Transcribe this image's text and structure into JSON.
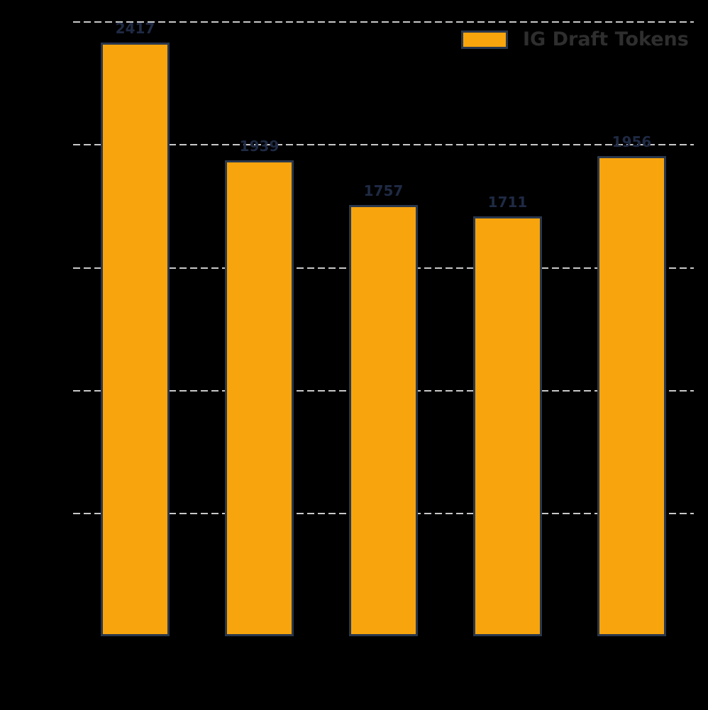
{
  "chart_data": {
    "type": "bar",
    "title": "",
    "xlabel": "",
    "ylabel": "",
    "categories": [
      "",
      "",
      "",
      "",
      ""
    ],
    "series": [
      {
        "name": "IG Draft Tokens",
        "values": [
          2417,
          1939,
          1757,
          1711,
          1956
        ]
      }
    ],
    "bar_value_labels": [
      "2417",
      "1939",
      "1757",
      "1711",
      "1956"
    ],
    "ylim": [
      0,
      2600
    ],
    "gridline_values": [
      500,
      1000,
      1500,
      2000,
      2500
    ],
    "grid": "horizontal-dashed",
    "legend_position": "upper-right",
    "legend_label": "IG Draft Tokens",
    "colors": {
      "background": "#000000",
      "bar_fill": "#F7A40D",
      "bar_edge": "#2A374C",
      "value_label": "#1F2A44",
      "legend_text": "#2E2E2E",
      "gridline": "#C8C8C8"
    }
  }
}
